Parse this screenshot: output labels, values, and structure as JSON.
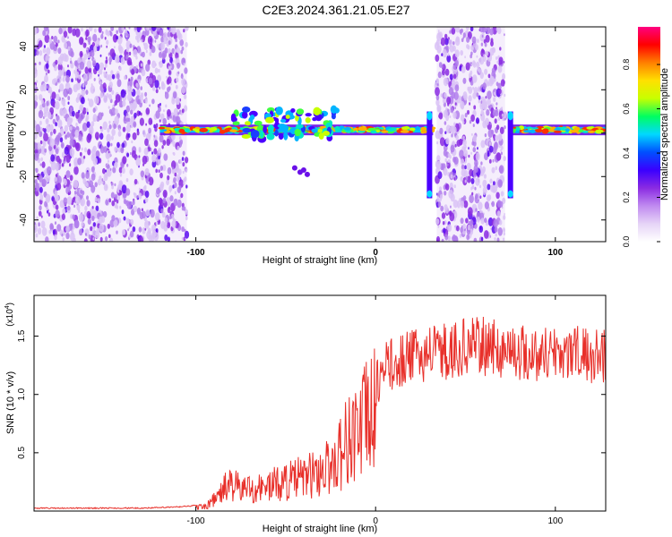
{
  "title": "C2E3.2024.361.21.05.E27",
  "colorbar": {
    "label": "Normalized spectral amplitude",
    "ticks": [
      "0.0",
      "0.2",
      "0.4",
      "0.6",
      "0.8"
    ],
    "tick_values": [
      0.0,
      0.2,
      0.4,
      0.6,
      0.8
    ],
    "range": [
      0,
      0.97
    ],
    "stops": [
      "#ffffff",
      "#e6d4f7",
      "#c08af0",
      "#8a2be2",
      "#3a00ff",
      "#0050ff",
      "#00d8ff",
      "#00ff60",
      "#c8ff00",
      "#ffe000",
      "#ff8000",
      "#ff0000",
      "#ff0080"
    ]
  },
  "chart_data": [
    {
      "type": "heatmap",
      "title": "C2E3.2024.361.21.05.E27",
      "xlabel": "Height of straight line (km)",
      "ylabel": "Frequency (Hz)",
      "xlim": [
        -190,
        128
      ],
      "ylim": [
        -50,
        49
      ],
      "x_ticks": [
        "-100",
        "0",
        "100"
      ],
      "x_tick_values": [
        -100,
        0,
        100
      ],
      "y_ticks": [
        "-40",
        "-20",
        "0",
        "20",
        "40"
      ],
      "y_tick_values": [
        -40,
        -20,
        0,
        20,
        40
      ],
      "colorbar_label": "Normalized spectral amplitude",
      "grid": false,
      "noise_regions_km": [
        [
          -190,
          -105
        ],
        [
          34,
          72
        ]
      ],
      "signal_band_hz": 1.5,
      "signal_segments_km": [
        [
          -120,
          32
        ],
        [
          76,
          128
        ]
      ],
      "vertical_streaks_km": [
        30,
        75
      ]
    },
    {
      "type": "line",
      "xlabel": "Height of straight line (km)",
      "ylabel": "SNR (10 * v/v)",
      "y_multiplier": "(x10",
      "y_multiplier_exp": "4",
      "xlim": [
        -190,
        128
      ],
      "ylim": [
        0,
        1.85
      ],
      "x_ticks": [
        "-100",
        "0",
        "100"
      ],
      "x_tick_values": [
        -100,
        0,
        100
      ],
      "y_ticks": [
        "0.5",
        "1.0",
        "1.5"
      ],
      "y_tick_values": [
        0.5,
        1.0,
        1.5
      ],
      "color": "#e8302a",
      "grid": false,
      "series": [
        {
          "x": [
            -190,
            -130,
            -110,
            -95,
            -88,
            -82,
            -75,
            -65,
            -55,
            -45,
            -35,
            -25,
            -20,
            -15,
            -10,
            -5,
            0,
            5,
            10,
            20,
            30,
            40,
            50,
            60,
            70,
            80,
            90,
            100,
            110,
            120,
            128
          ],
          "values": [
            0.02,
            0.02,
            0.03,
            0.05,
            0.15,
            0.3,
            0.25,
            0.25,
            0.3,
            0.35,
            0.4,
            0.5,
            0.65,
            0.8,
            0.9,
            1.0,
            1.1,
            1.25,
            1.3,
            1.35,
            1.4,
            1.4,
            1.45,
            1.45,
            1.42,
            1.4,
            1.38,
            1.4,
            1.4,
            1.35,
            1.38
          ]
        }
      ]
    }
  ]
}
